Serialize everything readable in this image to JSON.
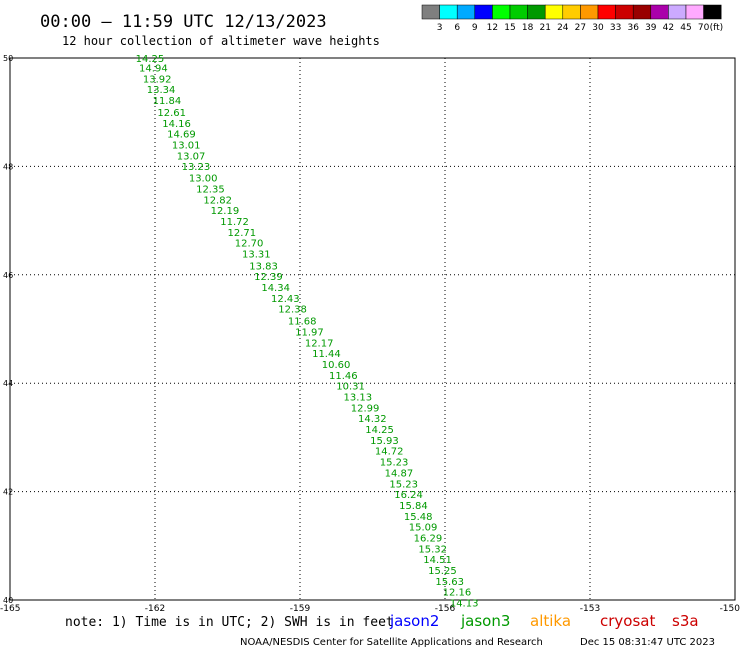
{
  "chart_data": {
    "type": "scatter",
    "title": "00:00 – 11:59 UTC 12/13/2023",
    "subtitle": "12 hour collection of altimeter wave heights",
    "xlabel": "",
    "ylabel": "",
    "xlim": [
      -165,
      -150
    ],
    "ylim": [
      40,
      50
    ],
    "x_ticks": [
      "-165",
      "-162",
      "-159",
      "-156",
      "-153",
      "-150"
    ],
    "y_ticks": [
      "50",
      "48",
      "46",
      "44",
      "42",
      "40"
    ],
    "grid": true,
    "color_scale": {
      "labels": [
        "3",
        "6",
        "9",
        "12",
        "15",
        "18",
        "21",
        "24",
        "27",
        "30",
        "33",
        "36",
        "39",
        "42",
        "45",
        "70"
      ],
      "unit": "(ft)",
      "colors": [
        "#7f7f7f",
        "#00ffff",
        "#00aaff",
        "#0000ff",
        "#00ff00",
        "#00cc00",
        "#009900",
        "#ffff00",
        "#ffcc00",
        "#ff9900",
        "#ff0000",
        "#cc0000",
        "#990000",
        "#aa00aa",
        "#ccaaff",
        "#ffaaff",
        "#000000"
      ]
    },
    "series": [
      {
        "name": "jason2",
        "color": "#0000ff",
        "points": []
      },
      {
        "name": "jason3",
        "color": "#009900",
        "points": [
          {
            "lon": -162.4,
            "lat": 49.93,
            "value": "14.25"
          },
          {
            "lon": -162.33,
            "lat": 49.75,
            "value": "14.94"
          },
          {
            "lon": -162.25,
            "lat": 49.55,
            "value": "13.92"
          },
          {
            "lon": -162.17,
            "lat": 49.35,
            "value": "13.34"
          },
          {
            "lon": -162.05,
            "lat": 49.15,
            "value": "11.84"
          },
          {
            "lon": -161.95,
            "lat": 48.93,
            "value": "12.61"
          },
          {
            "lon": -161.85,
            "lat": 48.73,
            "value": "14.16"
          },
          {
            "lon": -161.75,
            "lat": 48.53,
            "value": "14.69"
          },
          {
            "lon": -161.65,
            "lat": 48.33,
            "value": "13.01"
          },
          {
            "lon": -161.55,
            "lat": 48.13,
            "value": "13.07"
          },
          {
            "lon": -161.45,
            "lat": 47.93,
            "value": "13.23"
          },
          {
            "lon": -161.3,
            "lat": 47.72,
            "value": "13.00"
          },
          {
            "lon": -161.15,
            "lat": 47.52,
            "value": "12.35"
          },
          {
            "lon": -161.0,
            "lat": 47.32,
            "value": "12.82"
          },
          {
            "lon": -160.85,
            "lat": 47.12,
            "value": "12.19"
          },
          {
            "lon": -160.65,
            "lat": 46.92,
            "value": "11.72"
          },
          {
            "lon": -160.5,
            "lat": 46.72,
            "value": "12.71"
          },
          {
            "lon": -160.35,
            "lat": 46.52,
            "value": "12.70"
          },
          {
            "lon": -160.2,
            "lat": 46.32,
            "value": "13.31"
          },
          {
            "lon": -160.05,
            "lat": 46.1,
            "value": "13.83"
          },
          {
            "lon": -159.95,
            "lat": 45.9,
            "value": "12.39"
          },
          {
            "lon": -159.8,
            "lat": 45.7,
            "value": "14.34"
          },
          {
            "lon": -159.6,
            "lat": 45.5,
            "value": "12.43"
          },
          {
            "lon": -159.45,
            "lat": 45.3,
            "value": "12.38"
          },
          {
            "lon": -159.25,
            "lat": 45.08,
            "value": "11.68"
          },
          {
            "lon": -159.1,
            "lat": 44.88,
            "value": "11.97"
          },
          {
            "lon": -158.9,
            "lat": 44.68,
            "value": "12.17"
          },
          {
            "lon": -158.75,
            "lat": 44.48,
            "value": "11.44"
          },
          {
            "lon": -158.55,
            "lat": 44.28,
            "value": "10.60"
          },
          {
            "lon": -158.4,
            "lat": 44.08,
            "value": "11.46"
          },
          {
            "lon": -158.25,
            "lat": 43.88,
            "value": "10.31"
          },
          {
            "lon": -158.1,
            "lat": 43.68,
            "value": "13.13"
          },
          {
            "lon": -157.95,
            "lat": 43.48,
            "value": "12.99"
          },
          {
            "lon": -157.8,
            "lat": 43.28,
            "value": "14.32"
          },
          {
            "lon": -157.65,
            "lat": 43.08,
            "value": "14.25"
          },
          {
            "lon": -157.55,
            "lat": 42.88,
            "value": "15.93"
          },
          {
            "lon": -157.45,
            "lat": 42.68,
            "value": "14.72"
          },
          {
            "lon": -157.35,
            "lat": 42.48,
            "value": "15.23"
          },
          {
            "lon": -157.25,
            "lat": 42.28,
            "value": "14.87"
          },
          {
            "lon": -157.15,
            "lat": 42.08,
            "value": "15.23"
          },
          {
            "lon": -157.05,
            "lat": 41.88,
            "value": "16.24"
          },
          {
            "lon": -156.95,
            "lat": 41.68,
            "value": "15.84"
          },
          {
            "lon": -156.85,
            "lat": 41.48,
            "value": "15.48"
          },
          {
            "lon": -156.75,
            "lat": 41.28,
            "value": "15.09"
          },
          {
            "lon": -156.65,
            "lat": 41.08,
            "value": "16.29"
          },
          {
            "lon": -156.55,
            "lat": 40.88,
            "value": "15.32"
          },
          {
            "lon": -156.45,
            "lat": 40.68,
            "value": "14.51"
          },
          {
            "lon": -156.35,
            "lat": 40.48,
            "value": "15.25"
          },
          {
            "lon": -156.2,
            "lat": 40.28,
            "value": "15.63"
          },
          {
            "lon": -156.05,
            "lat": 40.08,
            "value": "12.16"
          },
          {
            "lon": -155.9,
            "lat": 39.88,
            "value": "14.13"
          }
        ]
      }
    ],
    "track_labels": []
  },
  "legend": {
    "note": "note: 1) Time is in UTC; 2) SWH is in feet",
    "items": [
      {
        "name": "jason2",
        "color": "#0000ff"
      },
      {
        "name": "jason3",
        "color": "#009900"
      },
      {
        "name": "altika",
        "color": "#ff9900"
      },
      {
        "name": "cryosat",
        "color": "#cc0000"
      },
      {
        "name": "s3a",
        "color": "#cc0000"
      }
    ]
  },
  "footer": {
    "credit": "NOAA/NESDIS Center for Satellite Applications and Research",
    "timestamp": "Dec 15 08:31:47 UTC 2023"
  }
}
